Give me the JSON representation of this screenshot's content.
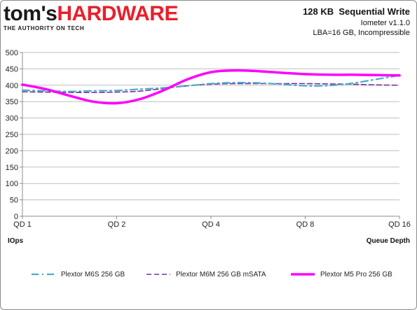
{
  "logo": {
    "part1": "tom's",
    "part2": "HARDWARE",
    "tagline": "THE AUTHORITY ON TECH"
  },
  "header": {
    "title": "128 KB  Sequential Write",
    "subtitle1": "Iometer v1.1.0",
    "subtitle2": "LBA=16 GB, Incompressible"
  },
  "colors": {
    "m6s": "#4bacc6",
    "m6m": "#7030a0",
    "m5pro": "#ff00ff",
    "grid": "#bfbfbf",
    "axis": "#8c8c8c"
  },
  "chart_data": {
    "type": "line",
    "title": "128 KB  Sequential Write",
    "xlabel": "Queue Depth",
    "ylabel": "IOps",
    "categories": [
      "QD 1",
      "QD 2",
      "QD 4",
      "QD 8",
      "QD 16"
    ],
    "yticks": [
      "0",
      "50",
      "100",
      "150",
      "200",
      "250",
      "300",
      "350",
      "400",
      "450",
      "500"
    ],
    "ylim": [
      0,
      500
    ],
    "grid": true,
    "legend_position": "bottom",
    "series": [
      {
        "name": "Plextor M6S 256 GB",
        "style": "dash-dot",
        "color": "#4bacc6",
        "x": [
          0,
          0.25,
          0.5,
          0.75,
          1,
          1.25,
          1.5,
          1.75,
          2,
          2.25,
          2.5,
          2.75,
          3,
          3.25,
          3.5,
          3.75,
          4
        ],
        "y": [
          385,
          383,
          381,
          383,
          384,
          388,
          392,
          398,
          405,
          408,
          407,
          403,
          398,
          399,
          406,
          418,
          430
        ]
      },
      {
        "name": "Plextor M6M 256 GB mSATA",
        "style": "dashed",
        "color": "#7030a0",
        "x": [
          0,
          0.25,
          0.5,
          0.75,
          1,
          1.25,
          1.5,
          1.75,
          2,
          2.25,
          2.5,
          2.75,
          3,
          3.25,
          3.5,
          3.75,
          4
        ],
        "y": [
          380,
          379,
          378,
          378,
          379,
          382,
          390,
          398,
          403,
          405,
          405,
          405,
          405,
          404,
          403,
          401,
          400
        ]
      },
      {
        "name": "Plextor M5 Pro 256 GB",
        "style": "solid",
        "color": "#ff00ff",
        "x": [
          0,
          0.25,
          0.5,
          0.75,
          1,
          1.25,
          1.5,
          1.75,
          2,
          2.25,
          2.5,
          2.75,
          3,
          3.25,
          3.5,
          3.75,
          4
        ],
        "y": [
          402,
          388,
          368,
          350,
          345,
          358,
          385,
          418,
          440,
          445,
          443,
          438,
          434,
          432,
          432,
          431,
          430
        ]
      }
    ]
  }
}
